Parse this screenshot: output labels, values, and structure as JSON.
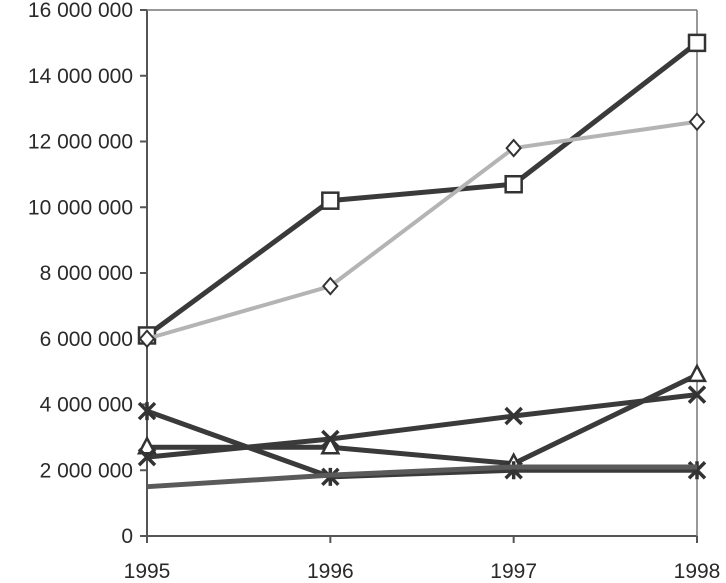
{
  "chart_data": {
    "type": "line",
    "title": "",
    "xlabel": "",
    "ylabel": "",
    "x": [
      "1995",
      "1996",
      "1997",
      "1998"
    ],
    "ylim": [
      0,
      16000000
    ],
    "y_ticks": [
      "0",
      "2 000 000",
      "4 000 000",
      "6 000 000",
      "8 000 000",
      "10 000 000",
      "12 000 000",
      "14 000 000",
      "16 000 000"
    ],
    "y_tick_values": [
      0,
      2000000,
      4000000,
      6000000,
      8000000,
      10000000,
      12000000,
      14000000,
      16000000
    ],
    "grid": false,
    "legend": "none",
    "series": [
      {
        "marker": "square",
        "color": "#3a3a3a",
        "values": [
          6100000,
          10200000,
          10700000,
          15000000
        ]
      },
      {
        "marker": "diamond",
        "color": "#b4b4b4",
        "values": [
          6000000,
          7600000,
          11800000,
          12600000
        ]
      },
      {
        "marker": "triangle",
        "color": "#3a3a3a",
        "values": [
          2700000,
          2700000,
          2200000,
          4900000
        ]
      },
      {
        "marker": "x",
        "color": "#3a3a3a",
        "values": [
          2400000,
          2950000,
          3650000,
          4300000
        ]
      },
      {
        "marker": "star",
        "color": "#3a3a3a",
        "values": [
          3800000,
          1800000,
          2000000,
          2000000
        ]
      },
      {
        "marker": "none",
        "color": "#5a5a5a",
        "values": [
          1500000,
          1850000,
          2100000,
          2100000
        ]
      }
    ]
  }
}
